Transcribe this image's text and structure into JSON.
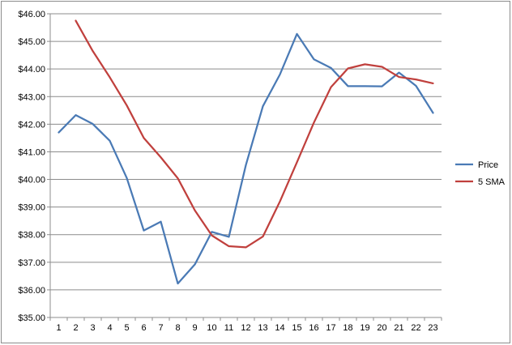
{
  "chart_data": {
    "type": "line",
    "x": [
      1,
      2,
      3,
      4,
      5,
      6,
      7,
      8,
      9,
      10,
      11,
      12,
      13,
      14,
      15,
      16,
      17,
      18,
      19,
      20,
      21,
      22,
      23
    ],
    "categories": [
      "1",
      "2",
      "3",
      "4",
      "5",
      "6",
      "7",
      "8",
      "9",
      "10",
      "11",
      "12",
      "13",
      "14",
      "15",
      "16",
      "17",
      "18",
      "19",
      "20",
      "21",
      "22",
      "23"
    ],
    "series": [
      {
        "name": "Price",
        "color": "#4a7ab5",
        "values": [
          41.7,
          42.33,
          42.01,
          41.4,
          40.05,
          38.15,
          38.47,
          36.23,
          36.92,
          38.1,
          37.92,
          40.52,
          42.65,
          43.8,
          45.27,
          44.35,
          44.04,
          43.38,
          43.38,
          43.37,
          43.87,
          43.39,
          42.41
        ]
      },
      {
        "name": "5 SMA",
        "color": "#c0403d",
        "values": [
          null,
          45.75,
          44.65,
          43.7,
          42.68,
          41.5,
          40.8,
          40.04,
          38.88,
          37.97,
          37.58,
          37.54,
          37.93,
          39.2,
          40.62,
          42.06,
          43.34,
          44.02,
          44.17,
          44.08,
          43.71,
          43.62,
          43.48
        ]
      }
    ],
    "yticks": [
      "$35.00",
      "$36.00",
      "$37.00",
      "$38.00",
      "$39.00",
      "$40.00",
      "$41.00",
      "$42.00",
      "$43.00",
      "$44.00",
      "$45.00",
      "$46.00"
    ],
    "ylim": [
      35,
      46
    ],
    "xlim": [
      1,
      23
    ],
    "title": "",
    "xlabel": "",
    "ylabel": "",
    "grid": "horizontal",
    "legend_position": "right"
  }
}
